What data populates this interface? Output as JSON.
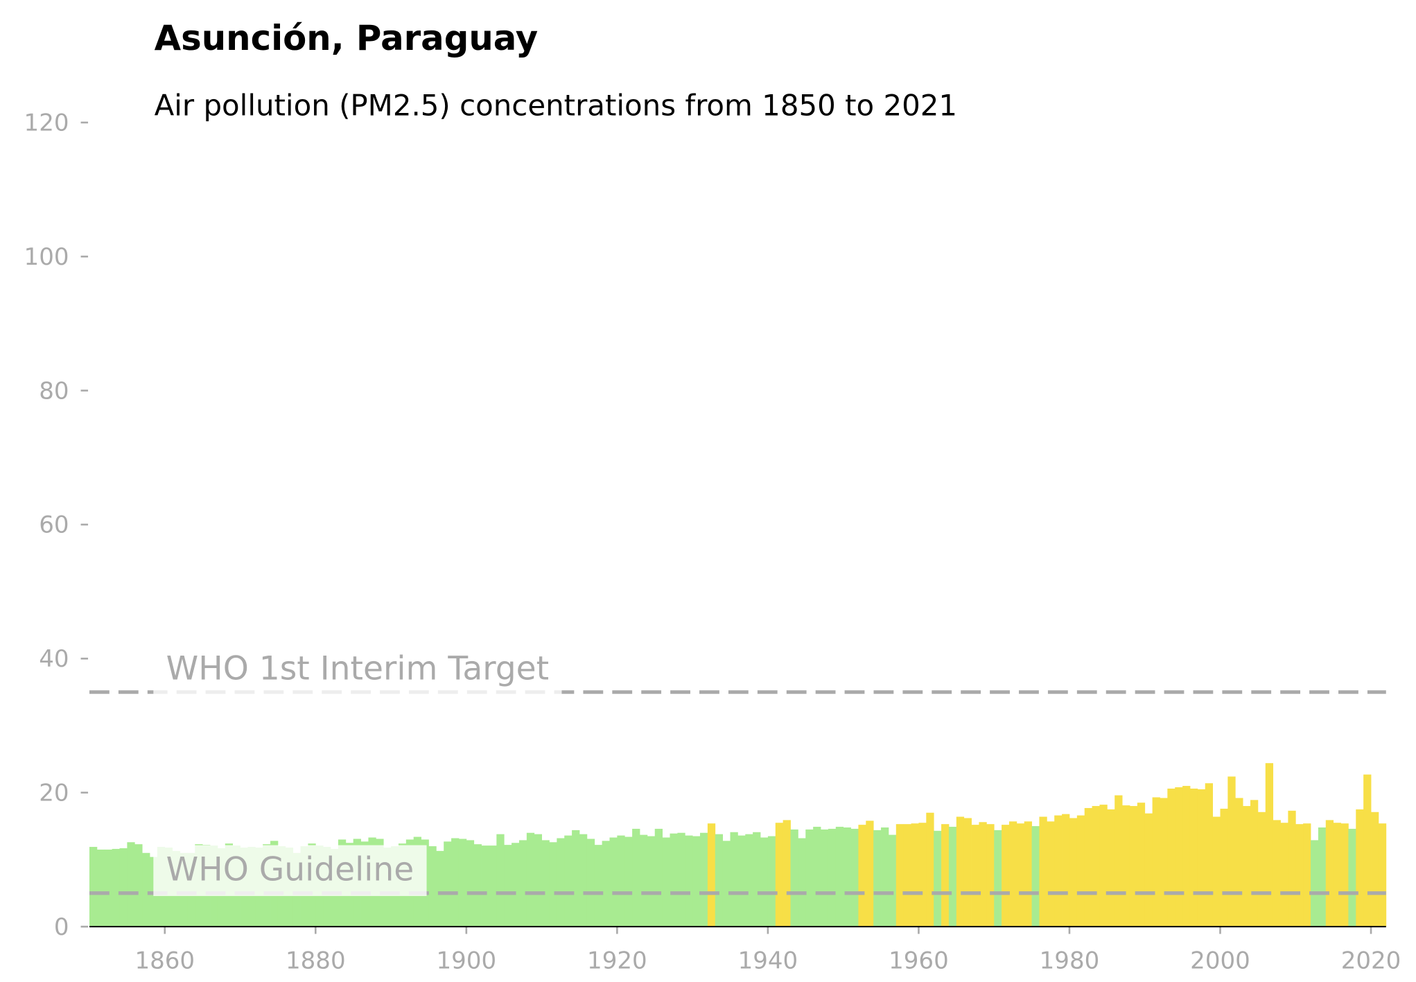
{
  "chart_data": {
    "type": "bar",
    "title": "Asunción, Paraguay",
    "subtitle": "Air pollution (PM2.5) concentrations from 1850 to 2021",
    "x": [
      1850,
      1851,
      1852,
      1853,
      1854,
      1855,
      1856,
      1857,
      1858,
      1859,
      1860,
      1861,
      1862,
      1863,
      1864,
      1865,
      1866,
      1867,
      1868,
      1869,
      1870,
      1871,
      1872,
      1873,
      1874,
      1875,
      1876,
      1877,
      1878,
      1879,
      1880,
      1881,
      1882,
      1883,
      1884,
      1885,
      1886,
      1887,
      1888,
      1889,
      1890,
      1891,
      1892,
      1893,
      1894,
      1895,
      1896,
      1897,
      1898,
      1899,
      1900,
      1901,
      1902,
      1903,
      1904,
      1905,
      1906,
      1907,
      1908,
      1909,
      1910,
      1911,
      1912,
      1913,
      1914,
      1915,
      1916,
      1917,
      1918,
      1919,
      1920,
      1921,
      1922,
      1923,
      1924,
      1925,
      1926,
      1927,
      1928,
      1929,
      1930,
      1931,
      1932,
      1933,
      1934,
      1935,
      1936,
      1937,
      1938,
      1939,
      1940,
      1941,
      1942,
      1943,
      1944,
      1945,
      1946,
      1947,
      1948,
      1949,
      1950,
      1951,
      1952,
      1953,
      1954,
      1955,
      1956,
      1957,
      1958,
      1959,
      1960,
      1961,
      1962,
      1963,
      1964,
      1965,
      1966,
      1967,
      1968,
      1969,
      1970,
      1971,
      1972,
      1973,
      1974,
      1975,
      1976,
      1977,
      1978,
      1979,
      1980,
      1981,
      1982,
      1983,
      1984,
      1985,
      1986,
      1987,
      1988,
      1989,
      1990,
      1991,
      1992,
      1993,
      1994,
      1995,
      1996,
      1997,
      1998,
      1999,
      2000,
      2001,
      2002,
      2003,
      2004,
      2005,
      2006,
      2007,
      2008,
      2009,
      2010,
      2011,
      2012,
      2013,
      2014,
      2015,
      2016,
      2017,
      2018,
      2019,
      2020,
      2021
    ],
    "values": [
      11.9,
      11.5,
      11.5,
      11.6,
      11.7,
      12.6,
      12.3,
      11.0,
      10.4,
      11.9,
      11.8,
      11.3,
      11.0,
      11.0,
      12.3,
      12.2,
      12.1,
      11.7,
      12.4,
      12.1,
      11.8,
      11.9,
      11.8,
      12.3,
      12.8,
      12.0,
      11.8,
      11.0,
      12.0,
      12.4,
      12.1,
      11.9,
      11.6,
      13.0,
      12.5,
      13.1,
      12.7,
      13.3,
      13.1,
      11.8,
      12.0,
      12.4,
      13.0,
      13.4,
      13.0,
      12.0,
      11.3,
      12.7,
      13.2,
      13.1,
      12.9,
      12.3,
      12.1,
      12.1,
      13.8,
      12.2,
      12.5,
      12.9,
      14.0,
      13.8,
      12.9,
      12.6,
      13.2,
      13.6,
      14.4,
      13.8,
      13.1,
      12.2,
      12.8,
      13.3,
      13.6,
      13.4,
      14.6,
      13.7,
      13.5,
      14.6,
      13.3,
      13.9,
      14.0,
      13.6,
      13.5,
      14.0,
      15.4,
      13.8,
      12.8,
      14.1,
      13.6,
      13.8,
      14.1,
      13.3,
      13.5,
      15.5,
      15.9,
      14.5,
      13.2,
      14.5,
      14.9,
      14.5,
      14.6,
      14.9,
      14.8,
      14.6,
      15.2,
      15.8,
      14.4,
      14.8,
      13.7,
      15.3,
      15.3,
      15.4,
      15.5,
      17.0,
      14.3,
      15.3,
      14.9,
      16.4,
      16.2,
      15.2,
      15.6,
      15.3,
      14.4,
      15.2,
      15.7,
      15.4,
      15.7,
      15.0,
      16.4,
      15.7,
      16.6,
      16.8,
      16.2,
      16.6,
      17.7,
      18.0,
      18.2,
      17.5,
      19.6,
      18.1,
      18.0,
      18.5,
      16.9,
      19.3,
      19.2,
      20.6,
      20.8,
      21.0,
      20.6,
      20.5,
      21.4,
      16.4,
      17.6,
      22.4,
      19.2,
      18.0,
      18.9,
      17.1,
      24.4,
      15.9,
      15.5,
      17.3,
      15.3,
      15.4,
      12.9,
      14.8,
      15.9,
      15.5,
      15.4,
      14.6,
      17.5,
      22.7,
      17.1,
      15.4
    ],
    "colors": [
      "#a8eb91",
      "#a8eb91",
      "#a8eb91",
      "#a8eb91",
      "#a8eb91",
      "#a8eb91",
      "#a8eb91",
      "#a8eb91",
      "#a8eb91",
      "#a8eb91",
      "#a8eb91",
      "#a8eb91",
      "#a8eb91",
      "#a8eb91",
      "#a8eb91",
      "#a8eb91",
      "#a8eb91",
      "#a8eb91",
      "#a8eb91",
      "#a8eb91",
      "#a8eb91",
      "#a8eb91",
      "#a8eb91",
      "#a8eb91",
      "#a8eb91",
      "#a8eb91",
      "#a8eb91",
      "#a8eb91",
      "#a8eb91",
      "#a8eb91",
      "#a8eb91",
      "#a8eb91",
      "#a8eb91",
      "#a8eb91",
      "#a8eb91",
      "#a8eb91",
      "#a8eb91",
      "#a8eb91",
      "#a8eb91",
      "#a8eb91",
      "#a8eb91",
      "#a8eb91",
      "#a8eb91",
      "#a8eb91",
      "#a8eb91",
      "#a8eb91",
      "#a8eb91",
      "#a8eb91",
      "#a8eb91",
      "#a8eb91",
      "#a8eb91",
      "#a8eb91",
      "#a8eb91",
      "#a8eb91",
      "#a8eb91",
      "#a8eb91",
      "#a8eb91",
      "#a8eb91",
      "#a8eb91",
      "#a8eb91",
      "#a8eb91",
      "#a8eb91",
      "#a8eb91",
      "#a8eb91",
      "#a8eb91",
      "#a8eb91",
      "#a8eb91",
      "#a8eb91",
      "#a8eb91",
      "#a8eb91",
      "#a8eb91",
      "#a8eb91",
      "#a8eb91",
      "#a8eb91",
      "#a8eb91",
      "#a8eb91",
      "#a8eb91",
      "#a8eb91",
      "#a8eb91",
      "#a8eb91",
      "#a8eb91",
      "#a8eb91",
      "#f7df47",
      "#a8eb91",
      "#a8eb91",
      "#a8eb91",
      "#a8eb91",
      "#a8eb91",
      "#a8eb91",
      "#a8eb91",
      "#a8eb91",
      "#f7df47",
      "#f7df47",
      "#a8eb91",
      "#a8eb91",
      "#a8eb91",
      "#a8eb91",
      "#a8eb91",
      "#a8eb91",
      "#a8eb91",
      "#a8eb91",
      "#a8eb91",
      "#f7df47",
      "#f7df47",
      "#a8eb91",
      "#a8eb91",
      "#a8eb91",
      "#f7df47",
      "#f7df47",
      "#f7df47",
      "#f7df47",
      "#f7df47",
      "#a8eb91",
      "#f7df47",
      "#a8eb91",
      "#f7df47",
      "#f7df47",
      "#f7df47",
      "#f7df47",
      "#f7df47",
      "#a8eb91",
      "#f7df47",
      "#f7df47",
      "#f7df47",
      "#f7df47",
      "#a8eb91",
      "#f7df47",
      "#f7df47",
      "#f7df47",
      "#f7df47",
      "#f7df47",
      "#f7df47",
      "#f7df47",
      "#f7df47",
      "#f7df47",
      "#f7df47",
      "#f7df47",
      "#f7df47",
      "#f7df47",
      "#f7df47",
      "#f7df47",
      "#f7df47",
      "#f7df47",
      "#f7df47",
      "#f7df47",
      "#f7df47",
      "#f7df47",
      "#f7df47",
      "#f7df47",
      "#f7df47",
      "#f7df47",
      "#f7df47",
      "#f7df47",
      "#f7df47",
      "#f7df47",
      "#f7df47",
      "#f7df47",
      "#f7df47",
      "#f7df47",
      "#f7df47",
      "#f7df47",
      "#f7df47",
      "#a8eb91",
      "#a8eb91",
      "#f7df47",
      "#f7df47",
      "#f7df47",
      "#a8eb91",
      "#f7df47",
      "#f7df47",
      "#f7df47",
      "#f7df47"
    ],
    "xlim": [
      1850,
      2022
    ],
    "xticks": [
      1860,
      1880,
      1900,
      1920,
      1940,
      1960,
      1980,
      2000,
      2020
    ],
    "ylim": [
      0,
      120
    ],
    "yticks": [
      0,
      20,
      40,
      60,
      80,
      100,
      120
    ],
    "reference_lines": [
      {
        "value": 35,
        "label": "WHO 1st Interim Target",
        "color": "#aaaaaa"
      },
      {
        "value": 5,
        "label": "WHO Guideline",
        "color": "#aaaaaa"
      }
    ]
  }
}
